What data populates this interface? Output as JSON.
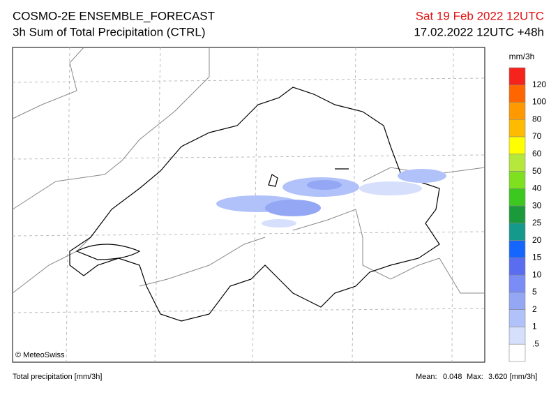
{
  "header": {
    "title": "COSMO-2E ENSEMBLE_FORECAST",
    "subtitle": "3h Sum of Total Precipitation (CTRL)",
    "valid_time": "Sat 19 Feb 2022 12UTC",
    "run_time": "17.02.2022 12UTC +48h"
  },
  "map": {
    "credit": "© MeteoSwiss"
  },
  "legend": {
    "unit": "mm/3h",
    "labels": [
      "120",
      "100",
      "80",
      "70",
      "60",
      "50",
      "40",
      "30",
      "25",
      "20",
      "15",
      "10",
      "5",
      "2",
      "1",
      ".5"
    ],
    "colors": [
      "#f5231c",
      "#ff6600",
      "#ff9900",
      "#ffbb00",
      "#ffff00",
      "#b5e83a",
      "#7fe020",
      "#3cc81e",
      "#1a9a3a",
      "#14998c",
      "#1466ff",
      "#5a6cf0",
      "#7a8cf5",
      "#93a7f5",
      "#b1c2fa",
      "#d6dffc",
      "#ffffff"
    ]
  },
  "footer": {
    "field": "Total precipitation [mm/3h]",
    "mean_label": "Mean:",
    "mean": "0.048",
    "max_label": "Max:",
    "max": "3.620 [mm/3h]"
  }
}
